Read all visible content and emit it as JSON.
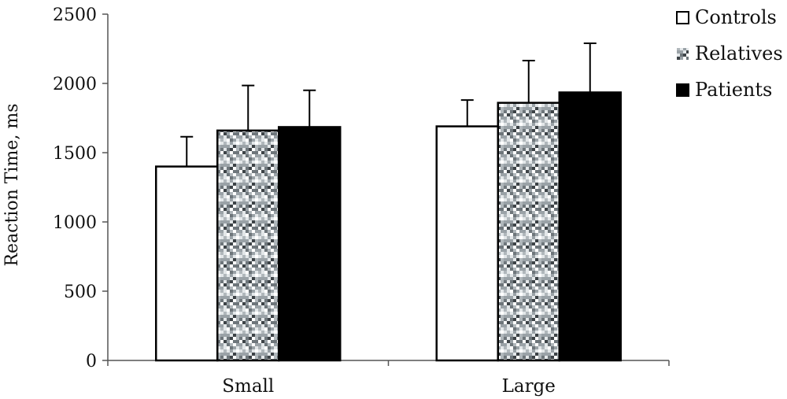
{
  "chart_data": {
    "type": "bar",
    "ylabel": "Reaction Time, ms",
    "xlabel": "",
    "ylim": [
      0,
      2500
    ],
    "yticks": [
      "0",
      "500",
      "1000",
      "1500",
      "2000",
      "2500"
    ],
    "categories": [
      "Small",
      "Large"
    ],
    "legend_position": "top-right",
    "series": [
      {
        "name": "Controls",
        "values": [
          1400,
          1690
        ],
        "errors": [
          215,
          190
        ],
        "fill": "solid",
        "color": "#ffffff"
      },
      {
        "name": "Relatives",
        "values": [
          1660,
          1860
        ],
        "errors": [
          325,
          305
        ],
        "fill": "speckled",
        "color": "#8a9196"
      },
      {
        "name": "Patients",
        "values": [
          1685,
          1935
        ],
        "errors": [
          265,
          355
        ],
        "fill": "solid",
        "color": "#000000"
      }
    ]
  }
}
